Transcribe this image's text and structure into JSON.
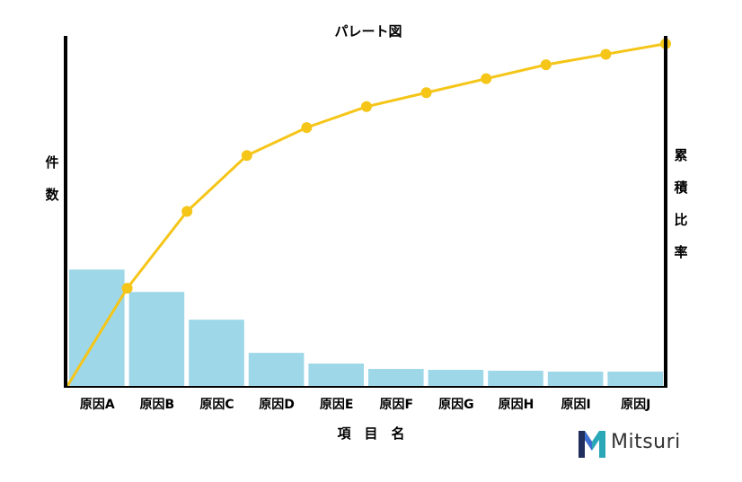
{
  "chart_data": {
    "type": "bar",
    "title": "パレート図",
    "xlabel": "項　目　名",
    "ylabel": "件数",
    "y2label": "累積比率",
    "categories": [
      "原因A",
      "原因B",
      "原因C",
      "原因D",
      "原因E",
      "原因F",
      "原因G",
      "原因H",
      "原因I",
      "原因J"
    ],
    "series": [
      {
        "kind": "bar",
        "values": [
          130,
          105,
          74,
          37,
          25,
          19,
          18,
          17,
          16,
          16
        ]
      },
      {
        "kind": "line",
        "values": [
          0.28,
          0.5,
          0.66,
          0.74,
          0.8,
          0.84,
          0.88,
          0.92,
          0.95,
          0.98
        ]
      }
    ],
    "ylim": [
      0,
      390
    ],
    "y2lim": [
      0,
      1
    ],
    "grid": false,
    "legend": "none",
    "colors": {
      "bar": "#9dd7e8",
      "line": "#f5c518",
      "axis": "#000000"
    }
  },
  "logo": {
    "text": "Mitsuri"
  }
}
